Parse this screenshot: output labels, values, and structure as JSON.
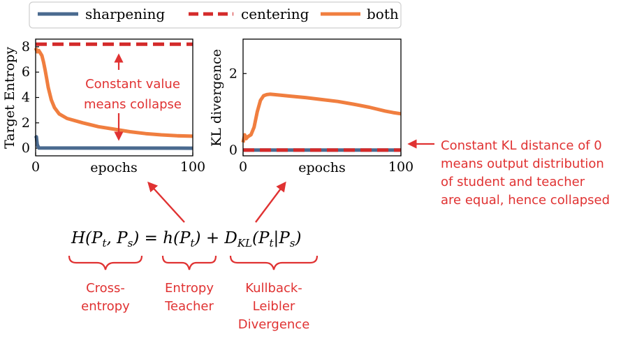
{
  "chart_data": [
    {
      "type": "line",
      "xlabel": "epochs",
      "ylabel": "Target Entropy",
      "xlim": [
        0,
        100
      ],
      "ylim": [
        -0.6,
        8.6
      ],
      "xticks": [
        0,
        100
      ],
      "yticks": [
        0,
        2,
        4,
        6,
        8
      ],
      "grid": false,
      "series": [
        {
          "name": "sharpening",
          "color": "#4a6a8f",
          "style": "solid",
          "x": [
            0,
            0.5,
            1,
            2,
            100
          ],
          "y": [
            0.8,
            0.9,
            0.3,
            0.02,
            0.0
          ]
        },
        {
          "name": "centering",
          "color": "#d42a2a",
          "style": "dashed",
          "x": [
            0,
            100
          ],
          "y": [
            8.2,
            8.2
          ]
        },
        {
          "name": "both",
          "color": "#f07e3f",
          "style": "solid",
          "x": [
            0,
            1,
            2,
            3,
            4,
            5,
            6,
            7,
            8,
            10,
            12,
            15,
            20,
            30,
            40,
            50,
            60,
            70,
            80,
            90,
            100
          ],
          "y": [
            7.9,
            7.6,
            7.7,
            7.5,
            7.3,
            6.8,
            6.2,
            5.5,
            4.8,
            3.8,
            3.2,
            2.7,
            2.35,
            2.0,
            1.7,
            1.5,
            1.3,
            1.15,
            1.05,
            0.98,
            0.95
          ]
        }
      ]
    },
    {
      "type": "line",
      "xlabel": "epochs",
      "ylabel": "KL divergence",
      "xlim": [
        0,
        100
      ],
      "ylim": [
        -0.15,
        2.9
      ],
      "xticks": [
        0,
        100
      ],
      "yticks": [
        0,
        2
      ],
      "grid": false,
      "series": [
        {
          "name": "sharpening",
          "color": "#4a6a8f",
          "style": "solid",
          "x": [
            0,
            100
          ],
          "y": [
            0.0,
            0.0
          ]
        },
        {
          "name": "centering",
          "color": "#d42a2a",
          "style": "dashed",
          "x": [
            0,
            100
          ],
          "y": [
            0.0,
            0.0
          ]
        },
        {
          "name": "both",
          "color": "#f07e3f",
          "style": "solid",
          "x": [
            0,
            1,
            2,
            3,
            5,
            7,
            9,
            11,
            13,
            15,
            17,
            20,
            30,
            40,
            50,
            60,
            70,
            80,
            90,
            95,
            100
          ],
          "y": [
            0.2,
            0.4,
            0.3,
            0.35,
            0.4,
            0.6,
            1.0,
            1.3,
            1.42,
            1.45,
            1.46,
            1.45,
            1.41,
            1.37,
            1.32,
            1.27,
            1.2,
            1.12,
            1.02,
            0.98,
            0.95
          ]
        }
      ]
    }
  ],
  "legend": {
    "placement": "top",
    "items": [
      {
        "label": "sharpening",
        "color": "#4a6a8f",
        "style": "solid"
      },
      {
        "label": "centering",
        "color": "#d42a2a",
        "style": "dashed"
      },
      {
        "label": "both",
        "color": "#f07e3f",
        "style": "solid"
      }
    ]
  },
  "annotations": {
    "color": "#e03232",
    "collapse_note": [
      "Constant value",
      "means collapse"
    ],
    "kl_note": [
      "Constant KL distance of 0",
      "means output distribution",
      "of student and teacher",
      "are equal, hence collapsed"
    ],
    "cross_entropy": [
      "Cross-",
      "entropy"
    ],
    "entropy_teacher": [
      "Entropy",
      "Teacher"
    ],
    "kl_divergence": [
      "Kullback-",
      "Leibler",
      "Divergence"
    ]
  },
  "formula": {
    "lhs": "H(P",
    "lhs_sub_t": "t",
    "lhs_mid": ", P",
    "lhs_sub_s": "s",
    "lhs_close": ") = h(P",
    "h_sub": "t",
    "h_close": ") + D",
    "d_sub": "KL",
    "d_open": "(P",
    "d_sub_t": "t",
    "d_bar": "|P",
    "d_sub_s": "s",
    "d_close": ")"
  }
}
